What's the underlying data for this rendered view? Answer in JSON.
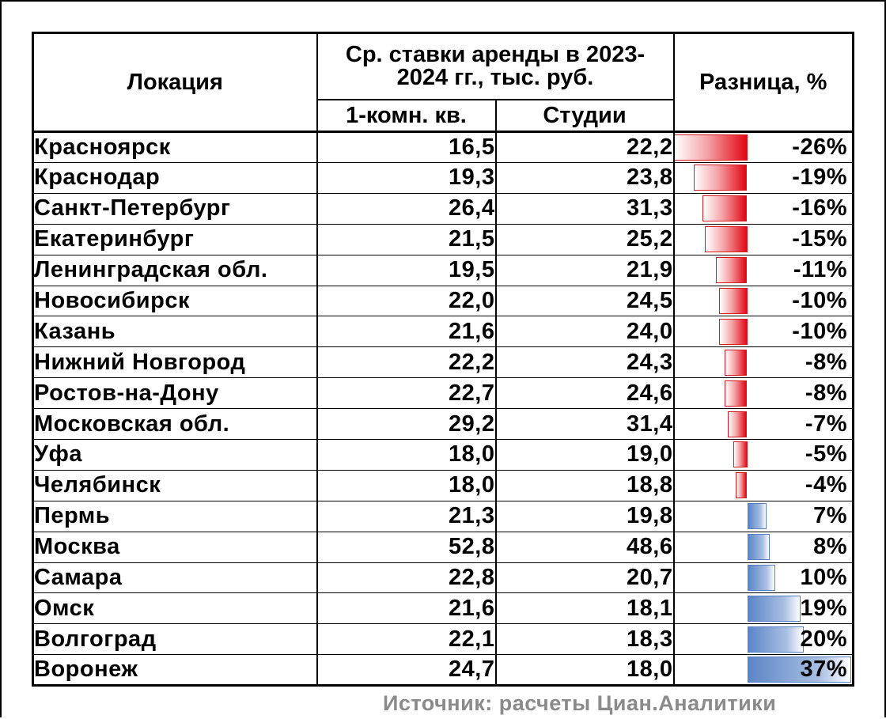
{
  "chart_data": {
    "type": "table",
    "columns": {
      "location": "Локация",
      "group": "Ср. ставки аренды в 2023-2024 гг., тыс. руб.",
      "one_room": "1-комн. кв.",
      "studio": "Студии",
      "diff": "Разница, %"
    },
    "rows": [
      {
        "location": "Красноярск",
        "one_room": "16,5",
        "studio": "22,2",
        "diff_label": "-26%",
        "diff": -26
      },
      {
        "location": "Краснодар",
        "one_room": "19,3",
        "studio": "23,8",
        "diff_label": "-19%",
        "diff": -19
      },
      {
        "location": "Санкт-Петербург",
        "one_room": "26,4",
        "studio": "31,3",
        "diff_label": "-16%",
        "diff": -16
      },
      {
        "location": "Екатеринбург",
        "one_room": "21,5",
        "studio": "25,2",
        "diff_label": "-15%",
        "diff": -15
      },
      {
        "location": "Ленинградская обл.",
        "one_room": "19,5",
        "studio": "21,9",
        "diff_label": "-11%",
        "diff": -11
      },
      {
        "location": "Новосибирск",
        "one_room": "22,0",
        "studio": "24,5",
        "diff_label": "-10%",
        "diff": -10
      },
      {
        "location": "Казань",
        "one_room": "21,6",
        "studio": "24,0",
        "diff_label": "-10%",
        "diff": -10
      },
      {
        "location": "Нижний Новгород",
        "one_room": "22,2",
        "studio": "24,3",
        "diff_label": "-8%",
        "diff": -8
      },
      {
        "location": "Ростов-на-Дону",
        "one_room": "22,7",
        "studio": "24,6",
        "diff_label": "-8%",
        "diff": -8
      },
      {
        "location": "Московская обл.",
        "one_room": "29,2",
        "studio": "31,4",
        "diff_label": "-7%",
        "diff": -7
      },
      {
        "location": "Уфа",
        "one_room": "18,0",
        "studio": "19,0",
        "diff_label": "-5%",
        "diff": -5
      },
      {
        "location": "Челябинск",
        "one_room": "18,0",
        "studio": "18,8",
        "diff_label": "-4%",
        "diff": -4
      },
      {
        "location": "Пермь",
        "one_room": "21,3",
        "studio": "19,8",
        "diff_label": "7%",
        "diff": 7
      },
      {
        "location": "Москва",
        "one_room": "52,8",
        "studio": "48,6",
        "diff_label": "8%",
        "diff": 8
      },
      {
        "location": "Самара",
        "one_room": "22,8",
        "studio": "20,7",
        "diff_label": "10%",
        "diff": 10
      },
      {
        "location": "Омск",
        "one_room": "21,6",
        "studio": "18,1",
        "diff_label": "19%",
        "diff": 19
      },
      {
        "location": "Волгоград",
        "one_room": "22,1",
        "studio": "18,3",
        "diff_label": "20%",
        "diff": 20
      },
      {
        "location": "Воронеж",
        "one_room": "24,7",
        "studio": "18,0",
        "diff_label": "37%",
        "diff": 37
      }
    ],
    "source": "Источник: расчеты Циан.Аналитики",
    "colors": {
      "negative": "#e30613",
      "positive": "#5b86c7"
    }
  }
}
